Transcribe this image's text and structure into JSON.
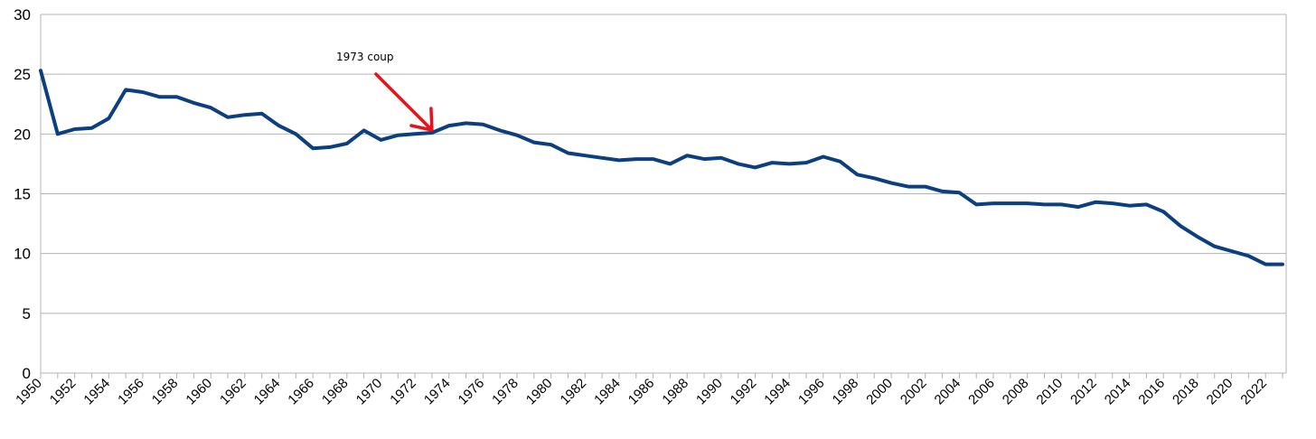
{
  "chart_data": {
    "type": "line",
    "title": "",
    "xlabel": "",
    "ylabel": "",
    "ylim": [
      0,
      30
    ],
    "yticks": [
      0,
      5,
      10,
      15,
      20,
      25,
      30
    ],
    "xlim": [
      1950,
      2023
    ],
    "xtick_labels": [
      "1950",
      "1952",
      "1954",
      "1956",
      "1958",
      "1960",
      "1962",
      "1964",
      "1966",
      "1968",
      "1970",
      "1972",
      "1974",
      "1976",
      "1978",
      "1980",
      "1982",
      "1984",
      "1986",
      "1988",
      "1990",
      "1992",
      "1994",
      "1996",
      "1998",
      "2000",
      "2002",
      "2004",
      "2006",
      "2008",
      "2010",
      "2012",
      "2014",
      "2016",
      "2018",
      "2020",
      "2022"
    ],
    "grid": true,
    "legend": "none",
    "series_color": "#0b3f7f",
    "annotation": {
      "text": "1973 coup",
      "target_x": 1973,
      "color": "#e3141b"
    },
    "series": [
      {
        "x": [
          1950,
          1951,
          1952,
          1953,
          1954,
          1955,
          1956,
          1957,
          1958,
          1959,
          1960,
          1961,
          1962,
          1963,
          1964,
          1965,
          1966,
          1967,
          1968,
          1969,
          1970,
          1971,
          1972,
          1973,
          1974,
          1975,
          1976,
          1977,
          1978,
          1979,
          1980,
          1981,
          1982,
          1983,
          1984,
          1985,
          1986,
          1987,
          1988,
          1989,
          1990,
          1991,
          1992,
          1993,
          1994,
          1995,
          1996,
          1997,
          1998,
          1999,
          2000,
          2001,
          2002,
          2003,
          2004,
          2005,
          2006,
          2007,
          2008,
          2009,
          2010,
          2011,
          2012,
          2013,
          2014,
          2015,
          2016,
          2017,
          2018,
          2019,
          2020,
          2021,
          2022,
          2023
        ],
        "values": [
          25.3,
          20.0,
          20.4,
          20.5,
          21.3,
          23.7,
          23.5,
          23.1,
          23.1,
          22.6,
          22.2,
          21.4,
          21.6,
          21.7,
          20.7,
          20.0,
          18.8,
          18.9,
          19.2,
          20.3,
          19.5,
          19.9,
          20.0,
          20.1,
          20.7,
          20.9,
          20.8,
          20.3,
          19.9,
          19.3,
          19.1,
          18.4,
          18.2,
          18.0,
          17.8,
          17.9,
          17.9,
          17.5,
          18.2,
          17.9,
          18.0,
          17.5,
          17.2,
          17.6,
          17.5,
          17.6,
          18.1,
          17.7,
          16.6,
          16.3,
          15.9,
          15.6,
          15.6,
          15.2,
          15.1,
          14.1,
          14.2,
          14.2,
          14.2,
          14.1,
          14.1,
          13.9,
          14.3,
          14.2,
          14.0,
          14.1,
          13.5,
          12.3,
          11.4,
          10.6,
          10.2,
          9.8,
          9.1,
          9.1
        ]
      }
    ]
  }
}
